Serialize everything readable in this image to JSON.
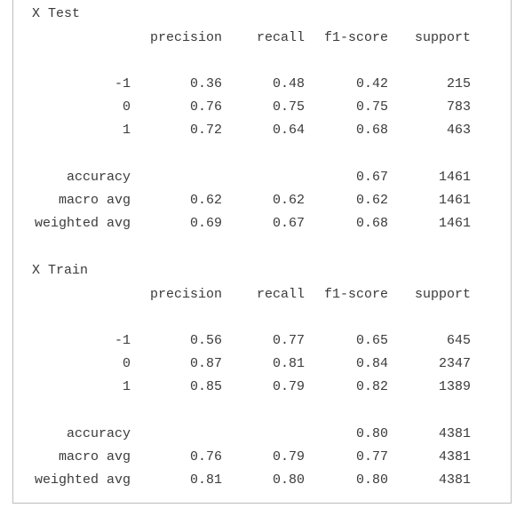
{
  "reports": [
    {
      "title": "X Test",
      "header": [
        "precision",
        "recall",
        "f1-score",
        "support"
      ],
      "rows": [
        [
          "-1",
          "0.36",
          "0.48",
          "0.42",
          "215"
        ],
        [
          "0",
          "0.76",
          "0.75",
          "0.75",
          "783"
        ],
        [
          "1",
          "0.72",
          "0.64",
          "0.68",
          "463"
        ],
        [
          "accuracy",
          null,
          null,
          "0.67",
          "1461"
        ],
        [
          "macro avg",
          "0.62",
          "0.62",
          "0.62",
          "1461"
        ],
        [
          "weighted avg",
          "0.69",
          "0.67",
          "0.68",
          "1461"
        ]
      ]
    },
    {
      "title": "X Train",
      "header": [
        "precision",
        "recall",
        "f1-score",
        "support"
      ],
      "rows": [
        [
          "-1",
          "0.56",
          "0.77",
          "0.65",
          "645"
        ],
        [
          "0",
          "0.87",
          "0.81",
          "0.84",
          "2347"
        ],
        [
          "1",
          "0.85",
          "0.79",
          "0.82",
          "1389"
        ],
        [
          "accuracy",
          null,
          null,
          "0.80",
          "4381"
        ],
        [
          "macro avg",
          "0.76",
          "0.79",
          "0.77",
          "4381"
        ],
        [
          "weighted avg",
          "0.81",
          "0.80",
          "0.80",
          "4381"
        ]
      ]
    }
  ]
}
